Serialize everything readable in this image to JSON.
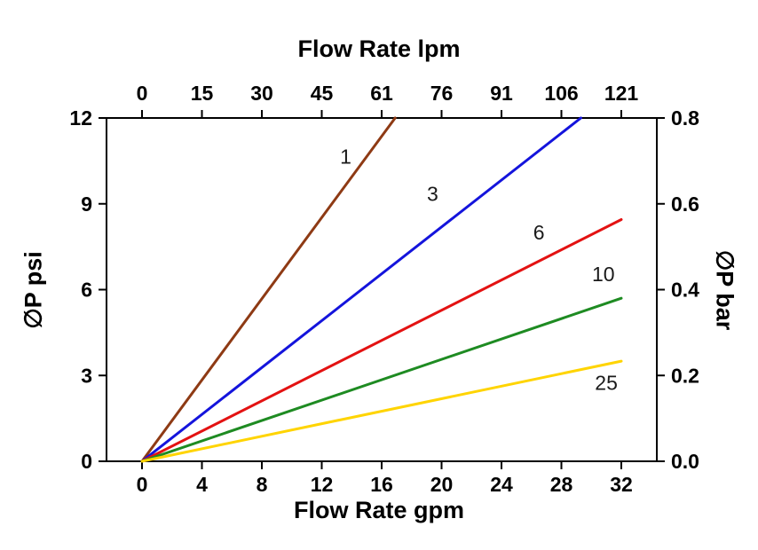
{
  "chart_data": {
    "type": "line",
    "title": "Flow Rate lpm",
    "title_top": "Flow Rate lpm",
    "xlabel_bottom": "Flow Rate gpm",
    "ylabel_left": "∅P psi",
    "ylabel_right": "∅P bar",
    "xlim_gpm": [
      0,
      32
    ],
    "ylim_psi": [
      0,
      12
    ],
    "x_gpm_ticks": [
      0,
      4,
      8,
      12,
      16,
      20,
      24,
      28,
      32
    ],
    "x_lpm_ticks": [
      0,
      15,
      30,
      45,
      61,
      76,
      91,
      106,
      121
    ],
    "y_psi_ticks": [
      0,
      3,
      6,
      9,
      12
    ],
    "y_bar_ticks": [
      "0.0",
      "0.2",
      "0.4",
      "0.6",
      "0.8"
    ],
    "grid": false,
    "legend": "inline-labels",
    "series": [
      {
        "name": "1",
        "color": "#8e3a14",
        "points": [
          [
            0,
            0
          ],
          [
            16.9,
            12
          ]
        ],
        "label_at": [
          13.6,
          10.4
        ]
      },
      {
        "name": "3",
        "color": "#1414dc",
        "points": [
          [
            0,
            0
          ],
          [
            29.3,
            12
          ]
        ],
        "label_at": [
          19.4,
          9.1
        ]
      },
      {
        "name": "6",
        "color": "#e31212",
        "points": [
          [
            0,
            0
          ],
          [
            32,
            8.45
          ]
        ],
        "label_at": [
          26.5,
          7.75
        ]
      },
      {
        "name": "10",
        "color": "#1e8b22",
        "points": [
          [
            0,
            0
          ],
          [
            32,
            5.7
          ]
        ],
        "label_at": [
          30.8,
          6.3
        ]
      },
      {
        "name": "25",
        "color": "#ffd400",
        "points": [
          [
            0,
            0
          ],
          [
            32,
            3.5
          ]
        ],
        "label_at": [
          31.0,
          2.5
        ]
      }
    ]
  }
}
